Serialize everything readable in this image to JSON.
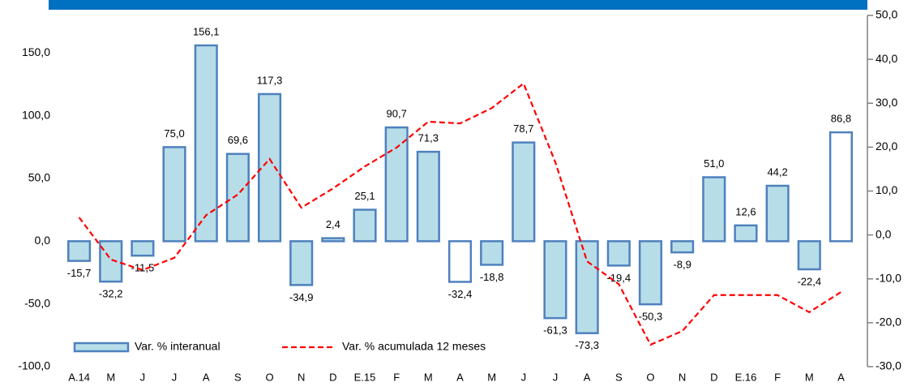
{
  "chart_data": {
    "type": "bar-line",
    "categories": [
      "A.14",
      "M",
      "J",
      "J",
      "A",
      "S",
      "O",
      "N",
      "D",
      "E.15",
      "F",
      "M",
      "A",
      "M",
      "J",
      "J",
      "A",
      "S",
      "O",
      "N",
      "D",
      "E.16",
      "F",
      "M",
      "A"
    ],
    "series": [
      {
        "name": "Var. % interanual",
        "type": "bar",
        "color": "#b7dde8",
        "edge_color": "#4f81bd",
        "point_colors": [
          "#b7dde8",
          "#b7dde8",
          "#b7dde8",
          "#b7dde8",
          "#b7dde8",
          "#b7dde8",
          "#b7dde8",
          "#b7dde8",
          "#b7dde8",
          "#b7dde8",
          "#b7dde8",
          "#b7dde8",
          "#ffffff",
          "#b7dde8",
          "#b7dde8",
          "#b7dde8",
          "#b7dde8",
          "#b7dde8",
          "#b7dde8",
          "#b7dde8",
          "#b7dde8",
          "#b7dde8",
          "#b7dde8",
          "#b7dde8",
          "#ffffff"
        ],
        "values": [
          -15.7,
          -32.2,
          -11.5,
          75.0,
          156.1,
          69.6,
          117.3,
          -34.9,
          2.4,
          25.1,
          90.7,
          71.3,
          -32.4,
          -18.8,
          78.7,
          -61.3,
          -73.3,
          -19.4,
          -50.3,
          -8.9,
          51.0,
          12.6,
          44.2,
          -22.4,
          86.8
        ],
        "value_labels": [
          "-15,7",
          "-32,2",
          "-11,5",
          "75,0",
          "156,1",
          "69,6",
          "117,3",
          "-34,9",
          "2,4",
          "25,1",
          "90,7",
          "71,3",
          "-32,4",
          "-18,8",
          "78,7",
          "-61,3",
          "-73,3",
          "-19,4",
          "-50,3",
          "-8,9",
          "51,0",
          "12,6",
          "44,2",
          "-22,4",
          "86,8"
        ]
      },
      {
        "name": "Var. % acumulada 12 meses",
        "type": "line",
        "axis": "y2",
        "color": "#ff0000",
        "dashed": true,
        "values": [
          4.0,
          -5.6,
          -8.0,
          -5.2,
          4.5,
          9.2,
          17.3,
          6.2,
          10.6,
          15.6,
          19.9,
          25.8,
          25.4,
          28.9,
          34.5,
          16.6,
          -6.0,
          -11.2,
          -25.0,
          -21.9,
          -13.7,
          -13.7,
          -13.7,
          -17.6,
          -13.0
        ]
      }
    ],
    "ylim": [
      -100,
      180
    ],
    "yticks": [
      {
        "value": -100,
        "label": "-100,0"
      },
      {
        "value": -50,
        "label": "-50,0"
      },
      {
        "value": 0,
        "label": "0,0"
      },
      {
        "value": 50,
        "label": "50,0"
      },
      {
        "value": 100,
        "label": "100,0"
      },
      {
        "value": 150,
        "label": "150,0"
      }
    ],
    "y2lim": [
      -30,
      50
    ],
    "y2ticks": [
      {
        "value": -30,
        "label": "-30,0"
      },
      {
        "value": -20,
        "label": "-20,0"
      },
      {
        "value": -10,
        "label": "-10,0"
      },
      {
        "value": 0,
        "label": "0,0"
      },
      {
        "value": 10,
        "label": "10,0"
      },
      {
        "value": 20,
        "label": "20,0"
      },
      {
        "value": 30,
        "label": "30,0"
      },
      {
        "value": 40,
        "label": "40,0"
      },
      {
        "value": 50,
        "label": "50,0"
      }
    ],
    "legend": "lower left"
  }
}
